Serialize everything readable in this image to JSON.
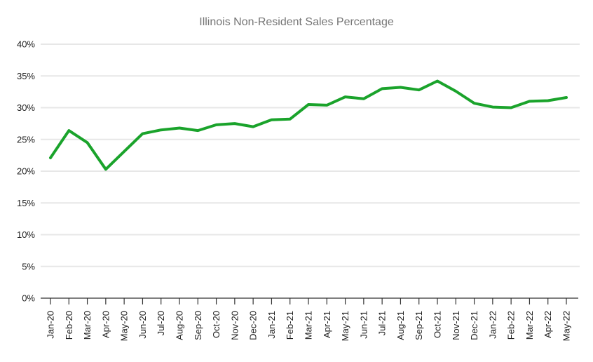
{
  "chart_data": {
    "type": "line",
    "title": "Illinois Non-Resident Sales Percentage",
    "xlabel": "",
    "ylabel": "",
    "ylim": [
      0,
      40
    ],
    "ytick_step": 5,
    "ytick_labels": [
      "0%",
      "5%",
      "10%",
      "15%",
      "20%",
      "25%",
      "30%",
      "35%",
      "40%"
    ],
    "grid": true,
    "legend": "none",
    "categories": [
      "Jan-20",
      "Feb-20",
      "Mar-20",
      "Apr-20",
      "May-20",
      "Jun-20",
      "Jul-20",
      "Aug-20",
      "Sep-20",
      "Oct-20",
      "Nov-20",
      "Dec-20",
      "Jan-21",
      "Feb-21",
      "Mar-21",
      "Apr-21",
      "May-21",
      "Jun-21",
      "Jul-21",
      "Aug-21",
      "Sep-21",
      "Oct-21",
      "Nov-21",
      "Dec-21",
      "Jan-22",
      "Feb-22",
      "Mar-22",
      "Apr-22",
      "May-22"
    ],
    "values": [
      22.1,
      26.4,
      24.5,
      20.3,
      23.1,
      25.9,
      26.5,
      26.8,
      26.4,
      27.3,
      27.5,
      27.0,
      28.1,
      28.2,
      30.5,
      30.4,
      31.7,
      31.4,
      33.0,
      33.2,
      32.8,
      34.2,
      32.6,
      30.7,
      30.1,
      30.0,
      31.0,
      31.1,
      31.6
    ],
    "colors": {
      "line": "#1AA32B",
      "grid": "#E7E7E7",
      "axis": "#333333",
      "title": "#757575",
      "tick_label": "#212121",
      "background": "#FFFFFF"
    }
  }
}
